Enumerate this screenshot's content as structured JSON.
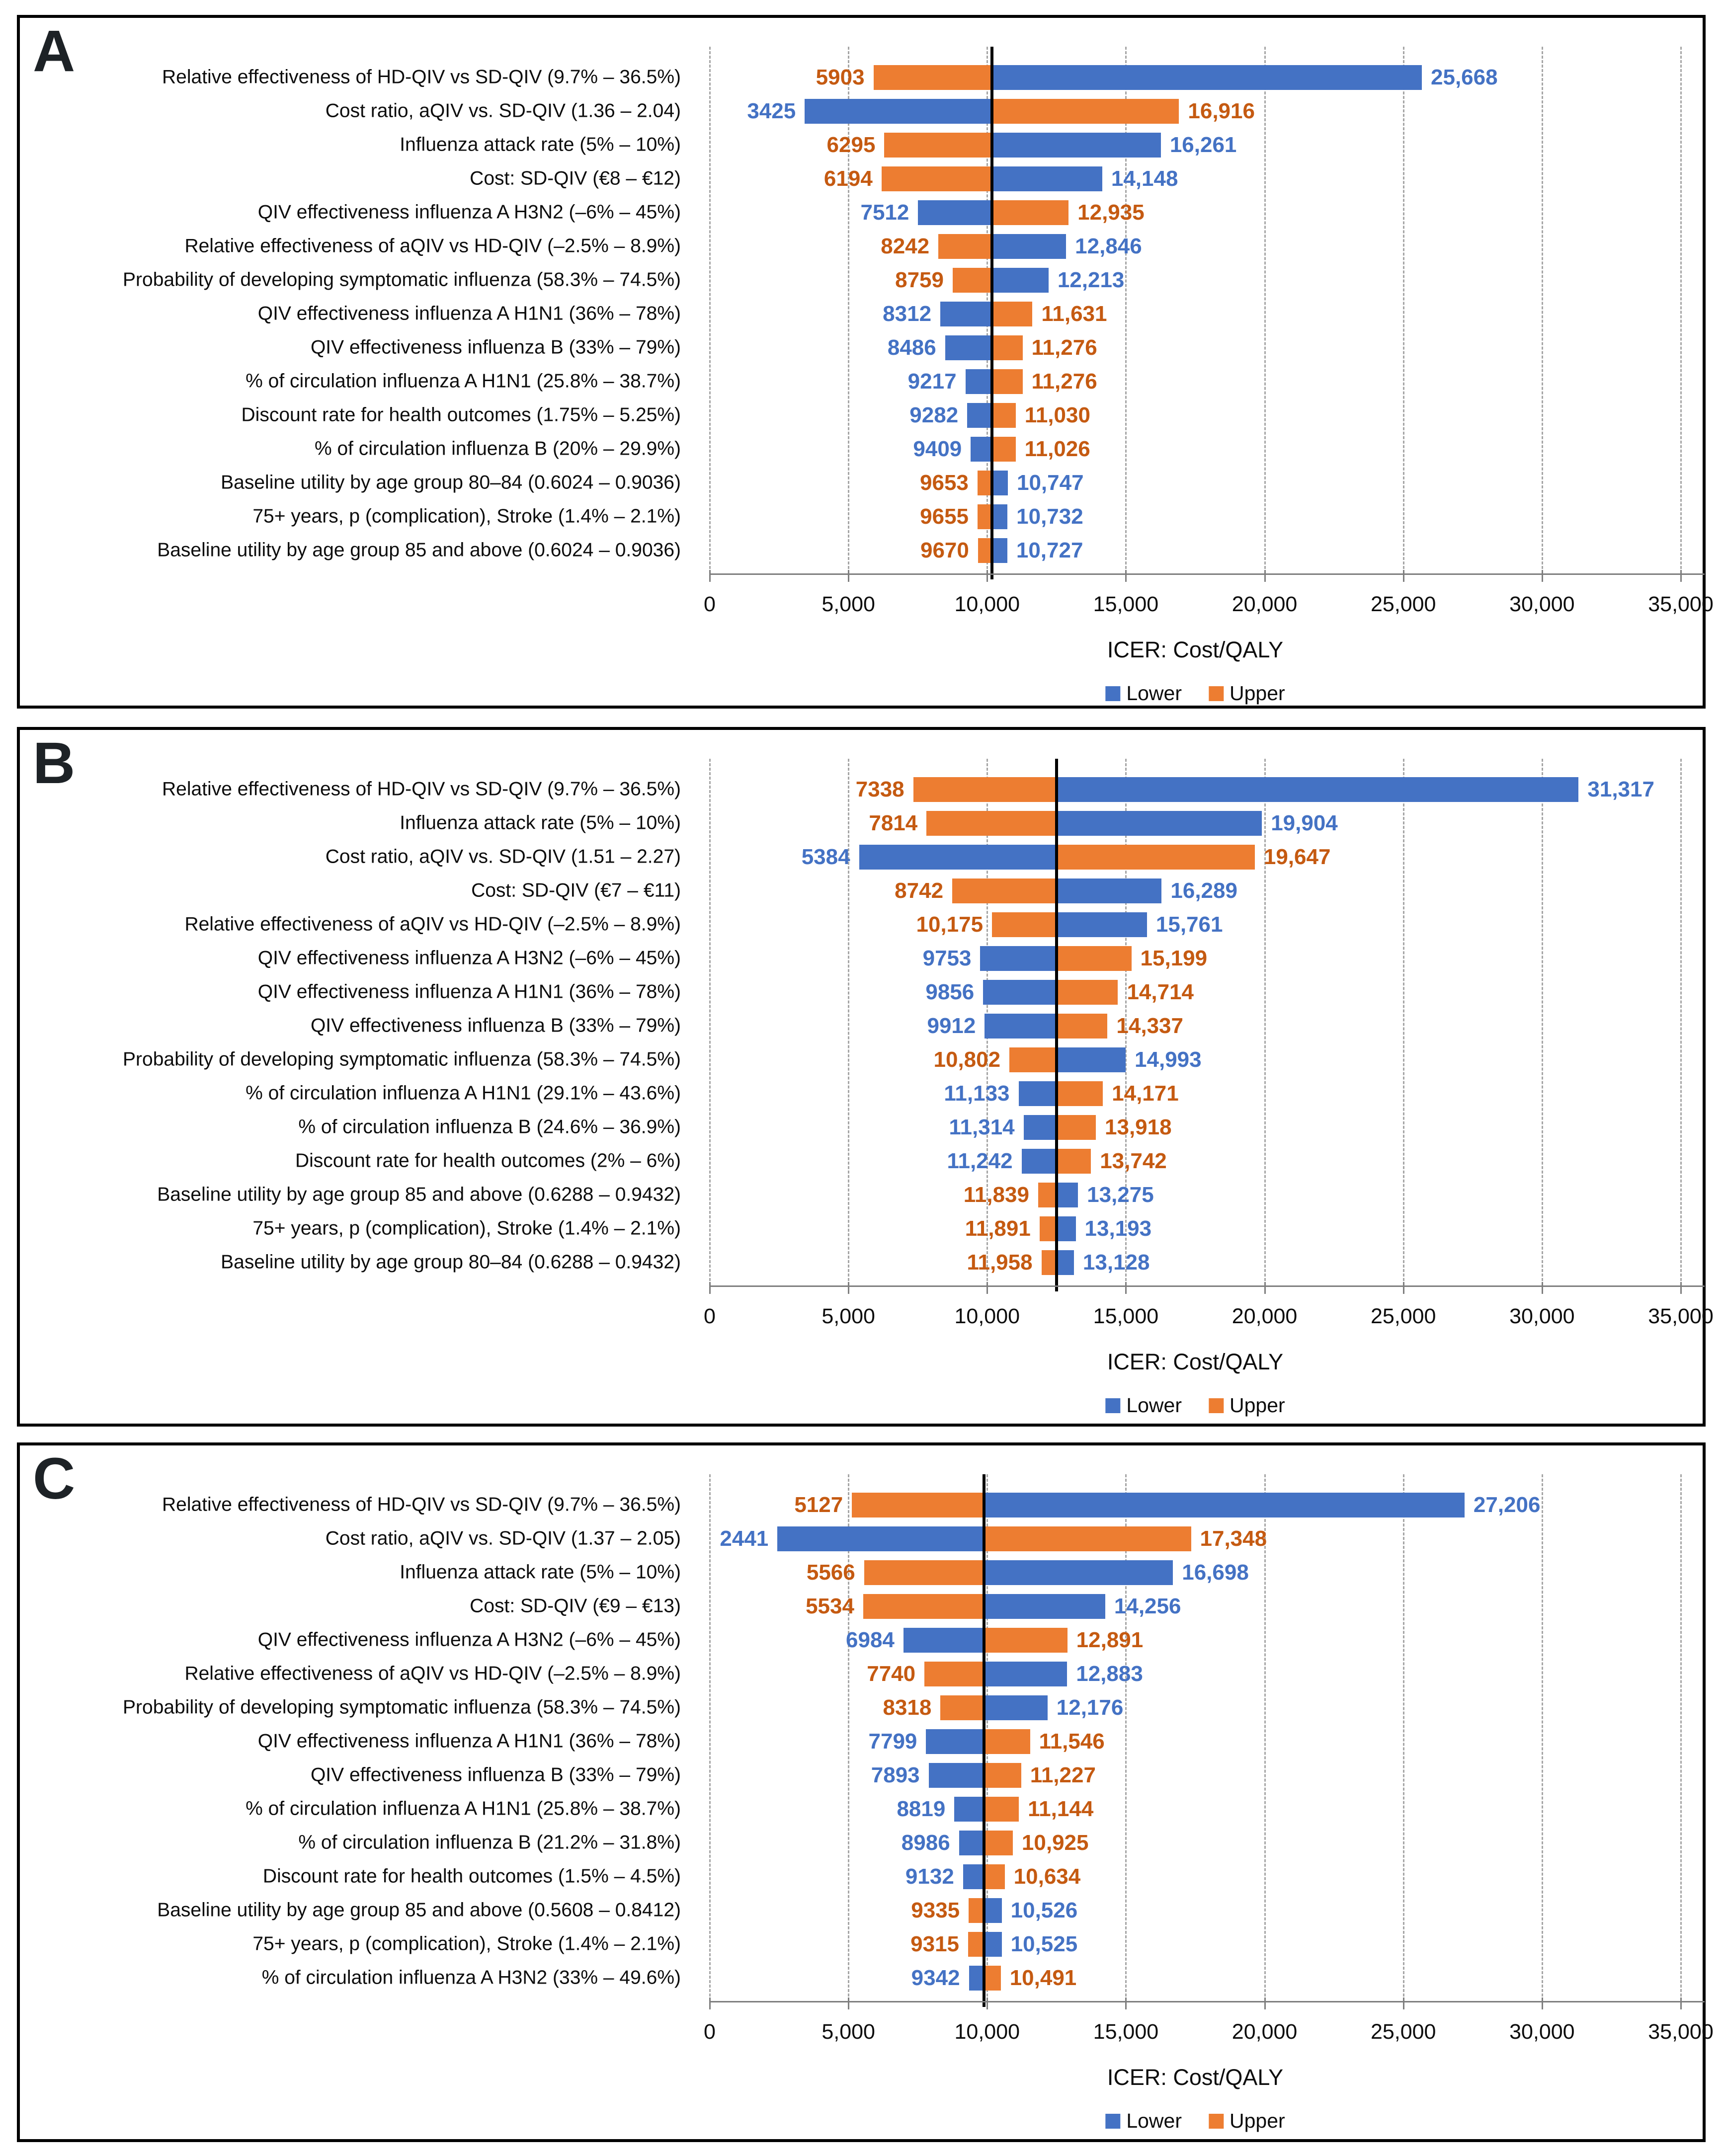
{
  "figure": {
    "xlabel": "ICER: Cost/QALY",
    "legend": [
      "Lower",
      "Upper"
    ],
    "colors": {
      "lower_bar": "#4472C4",
      "upper_bar": "#ED7D31",
      "lower_text": "#4472C4",
      "upper_text": "#C55A11",
      "baseline_line": "#000000",
      "gridline": "#A6A6A6",
      "axis_line": "#7F7F7F"
    }
  },
  "chart_data": [
    {
      "type": "bar",
      "panel": "A",
      "title": "",
      "xlabel": "ICER: Cost/QALY",
      "xlim": [
        0,
        35000
      ],
      "xticks": [
        0,
        5000,
        10000,
        15000,
        20000,
        25000,
        30000,
        35000
      ],
      "xtick_labels": [
        "0",
        "5,000",
        "10,000",
        "15,000",
        "20,000",
        "25,000",
        "30,000",
        "35,000"
      ],
      "grid": true,
      "legend": [
        "Lower",
        "Upper"
      ],
      "legend_position": "bottom",
      "baseline": 10170,
      "categories": [
        "Relative effectiveness of HD-QIV vs SD-QIV (9.7% – 36.5%)",
        "Cost ratio, aQIV vs. SD-QIV (1.36 – 2.04)",
        "Influenza attack rate (5% – 10%)",
        "Cost: SD-QIV (€8 – €12)",
        "QIV effectiveness influenza A H3N2 (–6% – 45%)",
        "Relative effectiveness of aQIV vs HD-QIV (–2.5% – 8.9%)",
        "Probability of developing symptomatic influenza (58.3% – 74.5%)",
        "QIV effectiveness influenza A H1N1 (36% – 78%)",
        "QIV effectiveness influenza B (33% – 79%)",
        "% of circulation influenza A H1N1 (25.8% – 38.7%)",
        "Discount rate for health outcomes (1.75% – 5.25%)",
        "% of circulation influenza B (20% – 29.9%)",
        "Baseline utility by age group 80–84 (0.6024 – 0.9036)",
        "75+ years, p (complication), Stroke (1.4% – 2.1%)",
        "Baseline utility by age group 85 and above (0.6024 – 0.9036)"
      ],
      "series": [
        {
          "name": "Lower",
          "values": [
            25668,
            3425,
            16261,
            14148,
            7512,
            12846,
            12213,
            8312,
            8486,
            9217,
            9282,
            9409,
            10747,
            10732,
            10727
          ]
        },
        {
          "name": "Upper",
          "values": [
            5903,
            16916,
            6295,
            6194,
            12935,
            8242,
            8759,
            11631,
            11276,
            11276,
            11030,
            11026,
            9653,
            9655,
            9670
          ]
        }
      ]
    },
    {
      "type": "bar",
      "panel": "B",
      "title": "",
      "xlabel": "ICER: Cost/QALY",
      "xlim": [
        0,
        35000
      ],
      "xticks": [
        0,
        5000,
        10000,
        15000,
        20000,
        25000,
        30000,
        35000
      ],
      "xtick_labels": [
        "0",
        "5,000",
        "10,000",
        "15,000",
        "20,000",
        "25,000",
        "30,000",
        "35,000"
      ],
      "grid": true,
      "legend": [
        "Lower",
        "Upper"
      ],
      "legend_position": "bottom",
      "baseline": 12500,
      "categories": [
        "Relative effectiveness of HD-QIV vs SD-QIV (9.7% – 36.5%)",
        "Influenza attack rate (5% – 10%)",
        "Cost ratio, aQIV vs. SD-QIV (1.51 – 2.27)",
        "Cost: SD-QIV (€7 – €11)",
        "Relative effectiveness of aQIV vs HD-QIV (–2.5% – 8.9%)",
        "QIV effectiveness influenza A H3N2 (–6% – 45%)",
        "QIV effectiveness influenza A H1N1 (36% – 78%)",
        "QIV effectiveness influenza B (33% – 79%)",
        "Probability of developing symptomatic influenza (58.3% – 74.5%)",
        "% of circulation influenza A H1N1 (29.1% – 43.6%)",
        "% of circulation influenza B (24.6% – 36.9%)",
        "Discount rate for health outcomes (2% – 6%)",
        "Baseline utility by age group 85 and above (0.6288 – 0.9432)",
        "75+ years, p (complication), Stroke (1.4% – 2.1%)",
        "Baseline utility by age group 80–84 (0.6288 – 0.9432)"
      ],
      "series": [
        {
          "name": "Lower",
          "values": [
            31317,
            19904,
            5384,
            16289,
            15761,
            9753,
            9856,
            9912,
            14993,
            11133,
            11314,
            11242,
            13275,
            13193,
            13128
          ]
        },
        {
          "name": "Upper",
          "values": [
            7338,
            7814,
            19647,
            8742,
            10175,
            15199,
            14714,
            14337,
            10802,
            14171,
            13918,
            13742,
            11839,
            11891,
            11958
          ]
        }
      ]
    },
    {
      "type": "bar",
      "panel": "C",
      "title": "",
      "xlabel": "ICER: Cost/QALY",
      "xlim": [
        0,
        35000
      ],
      "xticks": [
        0,
        5000,
        10000,
        15000,
        20000,
        25000,
        30000,
        35000
      ],
      "xtick_labels": [
        "0",
        "5,000",
        "10,000",
        "15,000",
        "20,000",
        "25,000",
        "30,000",
        "35,000"
      ],
      "grid": true,
      "legend": [
        "Lower",
        "Upper"
      ],
      "legend_position": "bottom",
      "baseline": 9890,
      "categories": [
        "Relative effectiveness of HD-QIV vs SD-QIV (9.7% – 36.5%)",
        "Cost ratio, aQIV vs. SD-QIV (1.37 – 2.05)",
        "Influenza attack rate (5% – 10%)",
        "Cost: SD-QIV (€9 – €13)",
        "QIV effectiveness influenza A H3N2 (–6% – 45%)",
        "Relative effectiveness of aQIV vs HD-QIV (–2.5% – 8.9%)",
        "Probability of developing symptomatic influenza (58.3% – 74.5%)",
        "QIV effectiveness influenza A H1N1 (36% – 78%)",
        "QIV effectiveness influenza B (33% – 79%)",
        "% of circulation influenza A H1N1 (25.8% – 38.7%)",
        "% of circulation influenza B (21.2% – 31.8%)",
        "Discount rate for health outcomes (1.5% – 4.5%)",
        "Baseline utility by age group 85 and above (0.5608 – 0.8412)",
        "75+ years, p (complication), Stroke (1.4% – 2.1%)",
        "% of circulation influenza A H3N2 (33% – 49.6%)"
      ],
      "series": [
        {
          "name": "Lower",
          "values": [
            27206,
            2441,
            16698,
            14256,
            6984,
            12883,
            12176,
            7799,
            7893,
            8819,
            8986,
            9132,
            10526,
            10525,
            9342
          ]
        },
        {
          "name": "Upper",
          "values": [
            5127,
            17348,
            5566,
            5534,
            12891,
            7740,
            8318,
            11546,
            11227,
            11144,
            10925,
            10634,
            9335,
            9315,
            10491
          ]
        }
      ]
    }
  ]
}
